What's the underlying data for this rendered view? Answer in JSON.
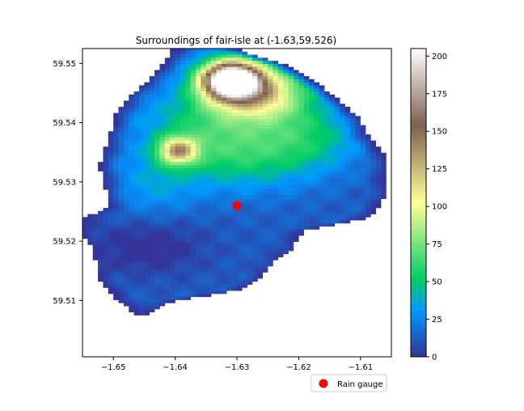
{
  "chart_data": {
    "type": "heatmap",
    "title": "Surroundings of fair-isle at (-1.63,59.526)",
    "xlabel": "",
    "ylabel": "",
    "xlim": [
      -1.655,
      -1.605
    ],
    "ylim": [
      59.5005,
      59.5525
    ],
    "x_ticks": [
      -1.65,
      -1.64,
      -1.63,
      -1.62,
      -1.61
    ],
    "x_tick_labels": [
      "−1.65",
      "−1.64",
      "−1.63",
      "−1.62",
      "−1.61"
    ],
    "y_ticks": [
      59.51,
      59.52,
      59.53,
      59.54,
      59.55
    ],
    "y_tick_labels": [
      "59.51",
      "59.52",
      "59.53",
      "59.54",
      "59.55"
    ],
    "colormap": "terrain",
    "colorbar": {
      "range": [
        0,
        205
      ],
      "ticks": [
        0,
        25,
        50,
        75,
        100,
        125,
        150,
        175,
        200
      ],
      "tick_labels": [
        "0",
        "25",
        "50",
        "75",
        "100",
        "125",
        "150",
        "175",
        "200"
      ]
    },
    "colormap_stops": [
      {
        "v": 0.0,
        "c": "#333399"
      },
      {
        "v": 0.15,
        "c": "#0099ff"
      },
      {
        "v": 0.25,
        "c": "#00cc66"
      },
      {
        "v": 0.5,
        "c": "#ffff99"
      },
      {
        "v": 0.75,
        "c": "#80604d"
      },
      {
        "v": 1.0,
        "c": "#ffffff"
      }
    ],
    "grid": {
      "x_start": -1.655,
      "dx": 0.000833,
      "y_top": 59.5525,
      "dy": 0.000517,
      "rows": [
        {
          "y": 59.5525,
          "x0": -1.6405,
          "x1": -1.6295
        },
        {
          "y": 59.55,
          "x0": -1.6421,
          "x1": -1.6221
        },
        {
          "y": 59.547,
          "x0": -1.6446,
          "x1": -1.6171
        },
        {
          "y": 59.545,
          "x0": -1.647,
          "x1": -1.6145
        },
        {
          "y": 59.541,
          "x0": -1.6501,
          "x1": -1.6103
        },
        {
          "y": 59.538,
          "x0": -1.6505,
          "x1": -1.6087
        },
        {
          "y": 59.535,
          "x0": -1.6518,
          "x1": -1.6062
        },
        {
          "y": 59.533,
          "x0": -1.6523,
          "x1": -1.6058
        },
        {
          "y": 59.529,
          "x0": -1.6512,
          "x1": -1.6058
        },
        {
          "y": 59.526,
          "x0": -1.651,
          "x1": -1.6066
        },
        {
          "y": 59.524,
          "x0": -1.6549,
          "x1": -1.6093
        },
        {
          "y": 59.522,
          "x0": -1.6552,
          "x1": -1.619
        },
        {
          "y": 59.519,
          "x0": -1.6535,
          "x1": -1.6211
        },
        {
          "y": 59.517,
          "x0": -1.6528,
          "x1": -1.6237
        },
        {
          "y": 59.514,
          "x0": -1.6523,
          "x1": -1.6262
        },
        {
          "y": 59.512,
          "x0": -1.651,
          "x1": -1.6295
        },
        {
          "y": 59.51,
          "x0": -1.649,
          "x1": -1.641
        },
        {
          "y": 59.508,
          "x0": -1.6466,
          "x1": -1.6445
        }
      ],
      "features": [
        {
          "x": -1.631,
          "y": 59.5475,
          "sx": 0.0033,
          "sy": 0.0022,
          "h": 210
        },
        {
          "x": -1.6265,
          "y": 59.5455,
          "sx": 0.0055,
          "sy": 0.0032,
          "h": 95
        },
        {
          "x": -1.6395,
          "y": 59.5355,
          "sx": 0.0022,
          "sy": 0.0016,
          "h": 95
        },
        {
          "x": -1.634,
          "y": 59.5395,
          "sx": 0.0085,
          "sy": 0.0052,
          "h": 40
        },
        {
          "x": -1.628,
          "y": 59.534,
          "sx": 0.008,
          "sy": 0.004,
          "h": 25
        },
        {
          "x": -1.618,
          "y": 59.538,
          "sx": 0.006,
          "sy": 0.004,
          "h": 30
        },
        {
          "x": -1.6435,
          "y": 59.5295,
          "sx": 0.005,
          "sy": 0.004,
          "h": 18
        },
        {
          "x": -1.6445,
          "y": 59.5195,
          "sx": 0.0065,
          "sy": 0.0035,
          "h": -15
        }
      ]
    },
    "series": [
      {
        "name": "Rain gauge",
        "type": "scatter",
        "x": [
          -1.63
        ],
        "y": [
          59.526
        ],
        "color": "#ff0000"
      }
    ],
    "legend": {
      "placement": "below-right",
      "entries": [
        "Rain gauge"
      ]
    }
  }
}
